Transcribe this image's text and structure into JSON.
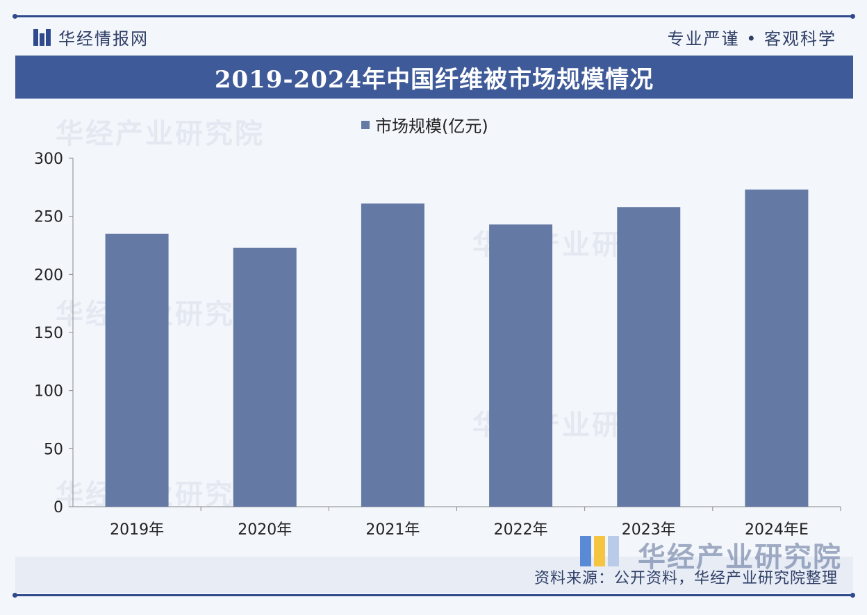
{
  "header": {
    "brand_name": "华经情报网",
    "slogan": "专业严谨 • 客观科学",
    "title": "2019-2024年中国纤维被市场规模情况"
  },
  "watermark": {
    "text": "华经产业研究院"
  },
  "footer": {
    "source": "资料来源：公开资料，华经产业研究院整理",
    "brand": "华经产业研究院"
  },
  "colors": {
    "bar": "#6579a5",
    "brand_navy": "#2f4a8c",
    "title_bar": "#3f5a98"
  },
  "chart_data": {
    "type": "bar",
    "categories": [
      "2019年",
      "2020年",
      "2021年",
      "2022年",
      "2023年",
      "2024年E"
    ],
    "series": [
      {
        "name": "市场规模(亿元)",
        "values": [
          235,
          223,
          261,
          243,
          258,
          273
        ]
      }
    ],
    "ylim": [
      0,
      300
    ],
    "yticks": [
      0,
      50,
      100,
      150,
      200,
      250,
      300
    ],
    "legend_position": "top-center",
    "grid": false
  }
}
